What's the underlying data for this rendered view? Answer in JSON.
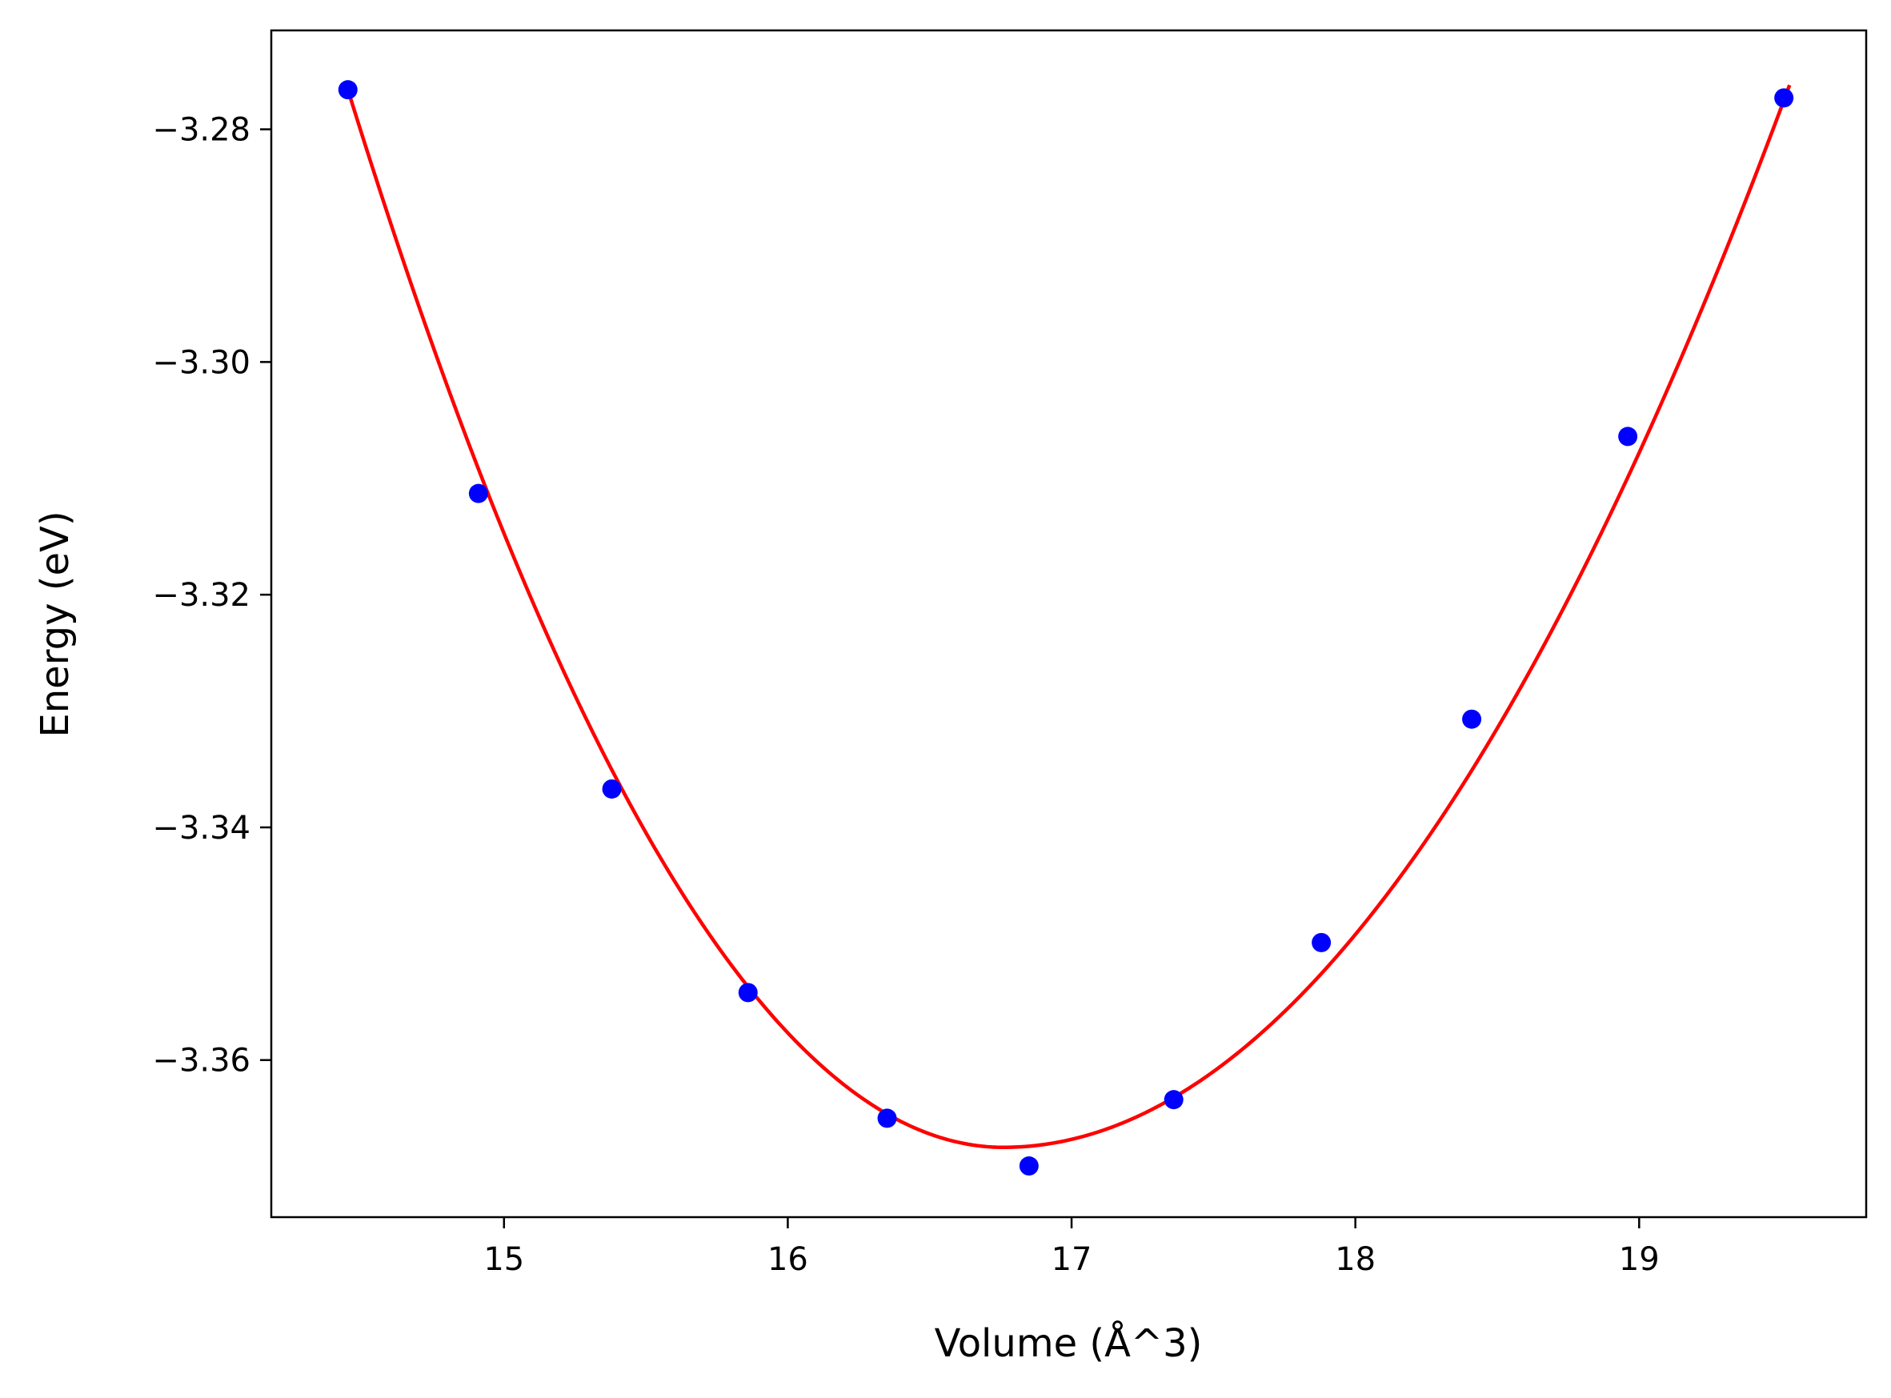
{
  "chart_data": {
    "type": "scatter",
    "title": "",
    "xlabel": "Volume (Å^3)",
    "ylabel": "Energy (eV)",
    "xlim": [
      14.18,
      19.8
    ],
    "ylim": [
      -3.3735,
      -3.2715
    ],
    "xticks": [
      15,
      16,
      17,
      18,
      19
    ],
    "xtick_labels": [
      "15",
      "16",
      "17",
      "18",
      "19"
    ],
    "yticks": [
      -3.28,
      -3.3,
      -3.32,
      -3.34,
      -3.36
    ],
    "ytick_labels": [
      "−3.28",
      "−3.30",
      "−3.32",
      "−3.34",
      "−3.36"
    ],
    "grid": false,
    "legend": false,
    "series": [
      {
        "kind": "scatter",
        "color": "#0000ff",
        "x": [
          14.45,
          14.91,
          15.38,
          15.86,
          16.35,
          16.85,
          17.36,
          17.88,
          18.41,
          18.96,
          19.51
        ],
        "y": [
          -3.2766,
          -3.3113,
          -3.3367,
          -3.3542,
          -3.365,
          -3.3691,
          -3.3634,
          -3.3499,
          -3.3307,
          -3.3064,
          -3.2773
        ]
      },
      {
        "kind": "line",
        "color": "#ff0000",
        "fit": {
          "type": "quadratic",
          "vmin_x": 16.76,
          "vmin_y": -3.3675,
          "left_x": 14.45,
          "left_y": -3.2766,
          "right_x": 19.53,
          "right_y": -3.2762
        },
        "x_range": [
          14.45,
          19.53
        ]
      }
    ]
  }
}
